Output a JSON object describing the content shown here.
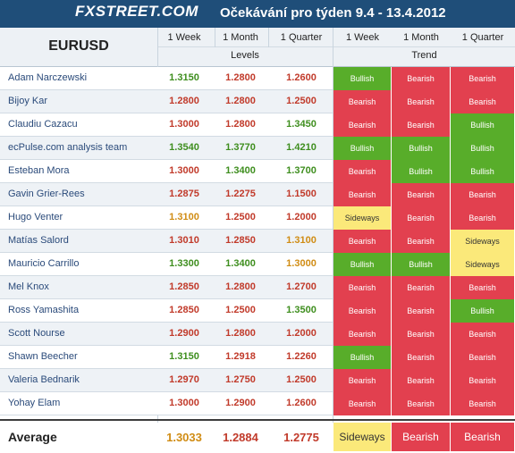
{
  "header": {
    "logo": "FXSTREET.COM",
    "title": "Očekávání pro týden 9.4 - 13.4.2012",
    "pair": "EURUSD",
    "periods_levels": [
      "1 Week",
      "1 Month",
      "1 Quarter"
    ],
    "periods_trend": [
      "1 Week",
      "1 Month",
      "1 Quarter"
    ],
    "levels_label": "Levels",
    "trend_label": "Trend"
  },
  "colors": {
    "bullish": "#58ad2a",
    "bearish": "#e2404f",
    "sideways": "#fbe97a",
    "level_green": "#3e8e1e",
    "level_red": "#c13a2a",
    "level_orange": "#d08c14"
  },
  "rows": [
    {
      "name": "Adam Narczewski",
      "levels": [
        "1.3150",
        "1.2800",
        "1.2600"
      ],
      "level_colors": [
        "green",
        "red",
        "red"
      ],
      "trend": [
        "Bullish",
        "Bearish",
        "Bearish"
      ]
    },
    {
      "name": "Bijoy Kar",
      "levels": [
        "1.2800",
        "1.2800",
        "1.2500"
      ],
      "level_colors": [
        "red",
        "red",
        "red"
      ],
      "trend": [
        "Bearish",
        "Bearish",
        "Bearish"
      ]
    },
    {
      "name": "Claudiu Cazacu",
      "levels": [
        "1.3000",
        "1.2800",
        "1.3450"
      ],
      "level_colors": [
        "red",
        "red",
        "green"
      ],
      "trend": [
        "Bearish",
        "Bearish",
        "Bullish"
      ]
    },
    {
      "name": "ecPulse.com analysis team",
      "levels": [
        "1.3540",
        "1.3770",
        "1.4210"
      ],
      "level_colors": [
        "green",
        "green",
        "green"
      ],
      "trend": [
        "Bullish",
        "Bullish",
        "Bullish"
      ]
    },
    {
      "name": "Esteban Mora",
      "levels": [
        "1.3000",
        "1.3400",
        "1.3700"
      ],
      "level_colors": [
        "red",
        "green",
        "green"
      ],
      "trend": [
        "Bearish",
        "Bullish",
        "Bullish"
      ]
    },
    {
      "name": "Gavin Grier-Rees",
      "levels": [
        "1.2875",
        "1.2275",
        "1.1500"
      ],
      "level_colors": [
        "red",
        "red",
        "red"
      ],
      "trend": [
        "Bearish",
        "Bearish",
        "Bearish"
      ]
    },
    {
      "name": "Hugo Venter",
      "levels": [
        "1.3100",
        "1.2500",
        "1.2000"
      ],
      "level_colors": [
        "orange",
        "red",
        "red"
      ],
      "trend": [
        "Sideways",
        "Bearish",
        "Bearish"
      ]
    },
    {
      "name": "Matías Salord",
      "levels": [
        "1.3010",
        "1.2850",
        "1.3100"
      ],
      "level_colors": [
        "red",
        "red",
        "orange"
      ],
      "trend": [
        "Bearish",
        "Bearish",
        "Sideways"
      ]
    },
    {
      "name": "Mauricio Carrillo",
      "levels": [
        "1.3300",
        "1.3400",
        "1.3000"
      ],
      "level_colors": [
        "green",
        "green",
        "orange"
      ],
      "trend": [
        "Bullish",
        "Bullish",
        "Sideways"
      ]
    },
    {
      "name": "Mel Knox",
      "levels": [
        "1.2850",
        "1.2800",
        "1.2700"
      ],
      "level_colors": [
        "red",
        "red",
        "red"
      ],
      "trend": [
        "Bearish",
        "Bearish",
        "Bearish"
      ]
    },
    {
      "name": "Ross Yamashita",
      "levels": [
        "1.2850",
        "1.2500",
        "1.3500"
      ],
      "level_colors": [
        "red",
        "red",
        "green"
      ],
      "trend": [
        "Bearish",
        "Bearish",
        "Bullish"
      ]
    },
    {
      "name": "Scott Nourse",
      "levels": [
        "1.2900",
        "1.2800",
        "1.2000"
      ],
      "level_colors": [
        "red",
        "red",
        "red"
      ],
      "trend": [
        "Bearish",
        "Bearish",
        "Bearish"
      ]
    },
    {
      "name": "Shawn Beecher",
      "levels": [
        "1.3150",
        "1.2918",
        "1.2260"
      ],
      "level_colors": [
        "green",
        "red",
        "red"
      ],
      "trend": [
        "Bullish",
        "Bearish",
        "Bearish"
      ]
    },
    {
      "name": "Valeria Bednarik",
      "levels": [
        "1.2970",
        "1.2750",
        "1.2500"
      ],
      "level_colors": [
        "red",
        "red",
        "red"
      ],
      "trend": [
        "Bearish",
        "Bearish",
        "Bearish"
      ]
    },
    {
      "name": "Yohay Elam",
      "levels": [
        "1.3000",
        "1.2900",
        "1.2600"
      ],
      "level_colors": [
        "red",
        "red",
        "red"
      ],
      "trend": [
        "Bearish",
        "Bearish",
        "Bearish"
      ]
    }
  ],
  "average": {
    "label": "Average",
    "levels": [
      "1.3033",
      "1.2884",
      "1.2775"
    ],
    "level_colors": [
      "orange",
      "red",
      "red"
    ],
    "trend": [
      "Sideways",
      "Bearish",
      "Bearish"
    ]
  }
}
